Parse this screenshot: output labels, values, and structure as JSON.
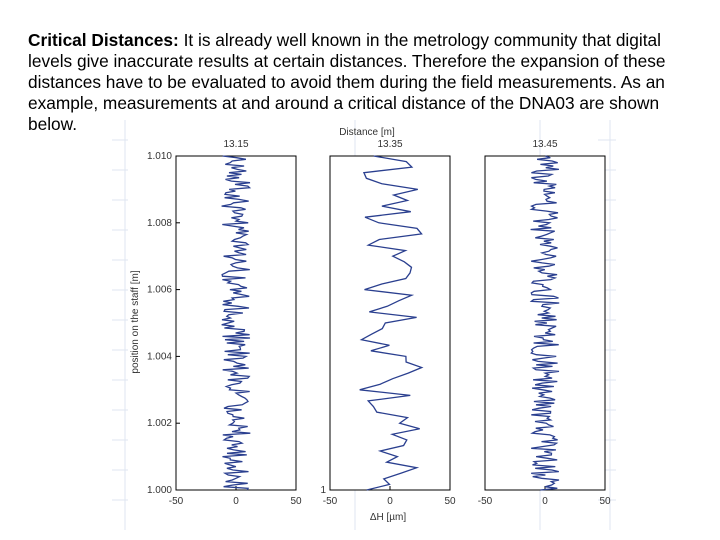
{
  "paragraph": {
    "heading": "Critical Distances:",
    "body": " It is already well known in the metrology community that digital levels give inaccurate results at certain distances. Therefore the expansion of these distances have to be evaluated to avoid them during the field measurements. As an example, measurements at and around a critical distance of the DNA03 are shown below."
  },
  "chart_data": {
    "type": "line",
    "title": "Distance [m]",
    "xlabel": "ΔH [µm]",
    "ylabel": "position on the staff [m]",
    "xlim": [
      -50,
      50
    ],
    "ylim": [
      1.0,
      1.01
    ],
    "x_ticks": [
      "-50",
      "0",
      "50"
    ],
    "y_ticks": [
      "1.000",
      "1.002",
      "1.004",
      "1.006",
      "1.008",
      "1.010"
    ],
    "line_color": "#2a3f8f",
    "panels": [
      {
        "distance_label": "13.15",
        "points": 200,
        "amplitude_um": 12,
        "noise": "high-frequency"
      },
      {
        "distance_label": "13.35",
        "points": 60,
        "amplitude_um": 25,
        "noise": "low-frequency"
      },
      {
        "distance_label": "13.45",
        "points": 200,
        "amplitude_um": 12,
        "noise": "high-frequency"
      }
    ]
  }
}
